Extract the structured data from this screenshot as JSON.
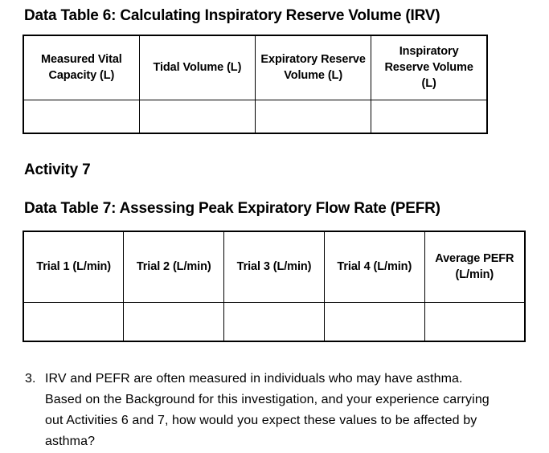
{
  "page": {
    "background_color": "#ffffff",
    "text_color": "#000000",
    "border_color": "#000000"
  },
  "section_table6": {
    "title": "Data Table 6: Calculating Inspiratory Reserve Volume (IRV)",
    "columns": [
      "Measured Vital Capacity (L)",
      "Tidal Volume (L)",
      "Expiratory Reserve Volume (L)",
      "Inspiratory Reserve Volume (L)"
    ],
    "rows": [
      [
        "",
        "",
        "",
        ""
      ]
    ]
  },
  "activity7": {
    "heading": "Activity 7"
  },
  "section_table7": {
    "title": "Data Table 7: Assessing Peak Expiratory Flow Rate (PEFR)",
    "columns": [
      "Trial 1 (L/min)",
      "Trial 2 (L/min)",
      "Trial 3 (L/min)",
      "Trial 4 (L/min)",
      "Average PEFR (L/min)"
    ],
    "rows": [
      [
        "",
        "",
        "",
        "",
        ""
      ]
    ]
  },
  "question3": {
    "number": "3.",
    "lines": [
      "IRV and PEFR are often measured in individuals who may have asthma.",
      "Based on the Background for this investigation, and your experience carrying",
      "out Activities 6 and 7, how would you expect these values to be affected by",
      "asthma?"
    ]
  }
}
